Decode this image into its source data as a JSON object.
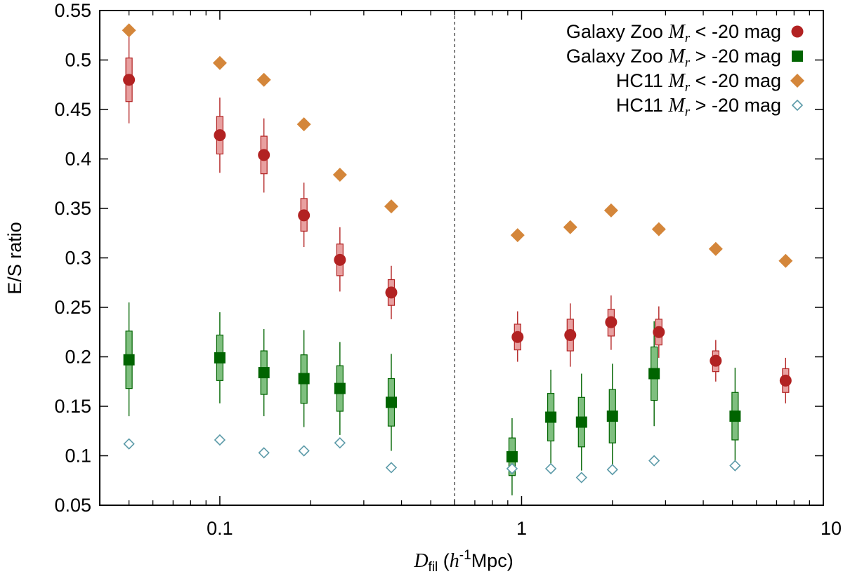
{
  "chart_data": {
    "type": "scatter",
    "xscale": "log",
    "xlim": [
      0.04,
      10
    ],
    "ylim": [
      0.05,
      0.55
    ],
    "xlabel": "D_fil (h^-1 Mpc)",
    "xlabel_parts": {
      "var": "D",
      "sub": "fil",
      "open": " (",
      "h": "h",
      "sup": "-1",
      "unit": "Mpc)"
    },
    "ylabel": "E/S ratio",
    "x_ticks": [
      {
        "value": 0.1,
        "label": "0.1"
      },
      {
        "value": 1,
        "label": "1"
      },
      {
        "value": 10,
        "label": "10"
      }
    ],
    "y_ticks": [
      {
        "value": 0.05,
        "label": "0.05"
      },
      {
        "value": 0.1,
        "label": "0.1"
      },
      {
        "value": 0.15,
        "label": "0.15"
      },
      {
        "value": 0.2,
        "label": "0.2"
      },
      {
        "value": 0.25,
        "label": "0.25"
      },
      {
        "value": 0.3,
        "label": "0.3"
      },
      {
        "value": 0.35,
        "label": "0.35"
      },
      {
        "value": 0.4,
        "label": "0.4"
      },
      {
        "value": 0.45,
        "label": "0.45"
      },
      {
        "value": 0.5,
        "label": "0.5"
      },
      {
        "value": 0.55,
        "label": "0.55"
      }
    ],
    "vline_x": 0.6,
    "legend_position": "top-right",
    "series": [
      {
        "name": "Galaxy Zoo M_r < -20 mag",
        "legend": {
          "pre": "Galaxy Zoo ",
          "var": "M",
          "sub": "r",
          "post": " < -20 mag"
        },
        "marker": "circle",
        "color": "#b22222",
        "box_fill": "#e8a0a0",
        "points": [
          {
            "x": 0.05,
            "y": 0.48,
            "box": [
              0.458,
              0.502
            ],
            "err": [
              0.436,
              0.524
            ]
          },
          {
            "x": 0.1,
            "y": 0.424,
            "box": [
              0.405,
              0.443
            ],
            "err": [
              0.386,
              0.462
            ]
          },
          {
            "x": 0.14,
            "y": 0.404,
            "box": [
              0.385,
              0.423
            ],
            "err": [
              0.366,
              0.441
            ]
          },
          {
            "x": 0.19,
            "y": 0.343,
            "box": [
              0.327,
              0.36
            ],
            "err": [
              0.311,
              0.376
            ]
          },
          {
            "x": 0.25,
            "y": 0.298,
            "box": [
              0.282,
              0.314
            ],
            "err": [
              0.266,
              0.331
            ]
          },
          {
            "x": 0.37,
            "y": 0.265,
            "box": [
              0.252,
              0.278
            ],
            "err": [
              0.238,
              0.292
            ]
          },
          {
            "x": 0.97,
            "y": 0.22,
            "box": [
              0.207,
              0.233
            ],
            "err": [
              0.195,
              0.246
            ]
          },
          {
            "x": 1.45,
            "y": 0.222,
            "box": [
              0.206,
              0.238
            ],
            "err": [
              0.19,
              0.254
            ]
          },
          {
            "x": 1.98,
            "y": 0.235,
            "box": [
              0.221,
              0.248
            ],
            "err": [
              0.207,
              0.262
            ]
          },
          {
            "x": 2.85,
            "y": 0.225,
            "box": [
              0.212,
              0.238
            ],
            "err": [
              0.199,
              0.251
            ]
          },
          {
            "x": 4.4,
            "y": 0.196,
            "box": [
              0.185,
              0.206
            ],
            "err": [
              0.175,
              0.217
            ]
          },
          {
            "x": 7.5,
            "y": 0.176,
            "box": [
              0.164,
              0.188
            ],
            "err": [
              0.153,
              0.199
            ]
          }
        ]
      },
      {
        "name": "Galaxy Zoo M_r > -20 mag",
        "legend": {
          "pre": "Galaxy Zoo ",
          "var": "M",
          "sub": "r",
          "post": " > -20 mag"
        },
        "marker": "square",
        "color": "#006400",
        "box_fill": "#7fbf7f",
        "points": [
          {
            "x": 0.05,
            "y": 0.197,
            "box": [
              0.168,
              0.226
            ],
            "err": [
              0.14,
              0.255
            ]
          },
          {
            "x": 0.1,
            "y": 0.199,
            "box": [
              0.176,
              0.222
            ],
            "err": [
              0.153,
              0.245
            ]
          },
          {
            "x": 0.14,
            "y": 0.184,
            "box": [
              0.162,
              0.206
            ],
            "err": [
              0.14,
              0.228
            ]
          },
          {
            "x": 0.19,
            "y": 0.178,
            "box": [
              0.153,
              0.202
            ],
            "err": [
              0.129,
              0.227
            ]
          },
          {
            "x": 0.25,
            "y": 0.168,
            "box": [
              0.145,
              0.191
            ],
            "err": [
              0.121,
              0.215
            ]
          },
          {
            "x": 0.37,
            "y": 0.154,
            "box": [
              0.13,
              0.178
            ],
            "err": [
              0.105,
              0.203
            ]
          },
          {
            "x": 0.93,
            "y": 0.099,
            "box": [
              0.08,
              0.118
            ],
            "err": [
              0.06,
              0.138
            ]
          },
          {
            "x": 1.25,
            "y": 0.139,
            "box": [
              0.115,
              0.163
            ],
            "err": [
              0.092,
              0.187
            ]
          },
          {
            "x": 1.58,
            "y": 0.134,
            "box": [
              0.109,
              0.159
            ],
            "err": [
              0.085,
              0.183
            ]
          },
          {
            "x": 2.0,
            "y": 0.14,
            "box": [
              0.113,
              0.167
            ],
            "err": [
              0.087,
              0.193
            ]
          },
          {
            "x": 2.75,
            "y": 0.183,
            "box": [
              0.156,
              0.21
            ],
            "err": [
              0.13,
              0.236
            ]
          },
          {
            "x": 5.1,
            "y": 0.14,
            "box": [
              0.116,
              0.164
            ],
            "err": [
              0.091,
              0.189
            ]
          }
        ]
      },
      {
        "name": "HC11 M_r < -20 mag",
        "legend": {
          "pre": "HC11 ",
          "var": "M",
          "sub": "r",
          "post": " < -20 mag"
        },
        "marker": "diamond",
        "color": "#d4863a",
        "points": [
          {
            "x": 0.05,
            "y": 0.53
          },
          {
            "x": 0.1,
            "y": 0.497
          },
          {
            "x": 0.14,
            "y": 0.48
          },
          {
            "x": 0.19,
            "y": 0.435
          },
          {
            "x": 0.25,
            "y": 0.384
          },
          {
            "x": 0.37,
            "y": 0.352
          },
          {
            "x": 0.97,
            "y": 0.323
          },
          {
            "x": 1.45,
            "y": 0.331
          },
          {
            "x": 1.98,
            "y": 0.348
          },
          {
            "x": 2.85,
            "y": 0.329
          },
          {
            "x": 4.4,
            "y": 0.309
          },
          {
            "x": 7.5,
            "y": 0.297
          }
        ]
      },
      {
        "name": "HC11 M_r > -20 mag",
        "legend": {
          "pre": "HC11 ",
          "var": "M",
          "sub": "r",
          "post": " > -20 mag"
        },
        "marker": "diamond-open",
        "color": "#5b9aa8",
        "points": [
          {
            "x": 0.05,
            "y": 0.112
          },
          {
            "x": 0.1,
            "y": 0.116
          },
          {
            "x": 0.14,
            "y": 0.103
          },
          {
            "x": 0.19,
            "y": 0.105
          },
          {
            "x": 0.25,
            "y": 0.113
          },
          {
            "x": 0.37,
            "y": 0.088
          },
          {
            "x": 0.93,
            "y": 0.087
          },
          {
            "x": 1.25,
            "y": 0.087
          },
          {
            "x": 1.58,
            "y": 0.078
          },
          {
            "x": 2.0,
            "y": 0.086
          },
          {
            "x": 2.75,
            "y": 0.095
          },
          {
            "x": 5.1,
            "y": 0.09
          }
        ]
      }
    ]
  }
}
